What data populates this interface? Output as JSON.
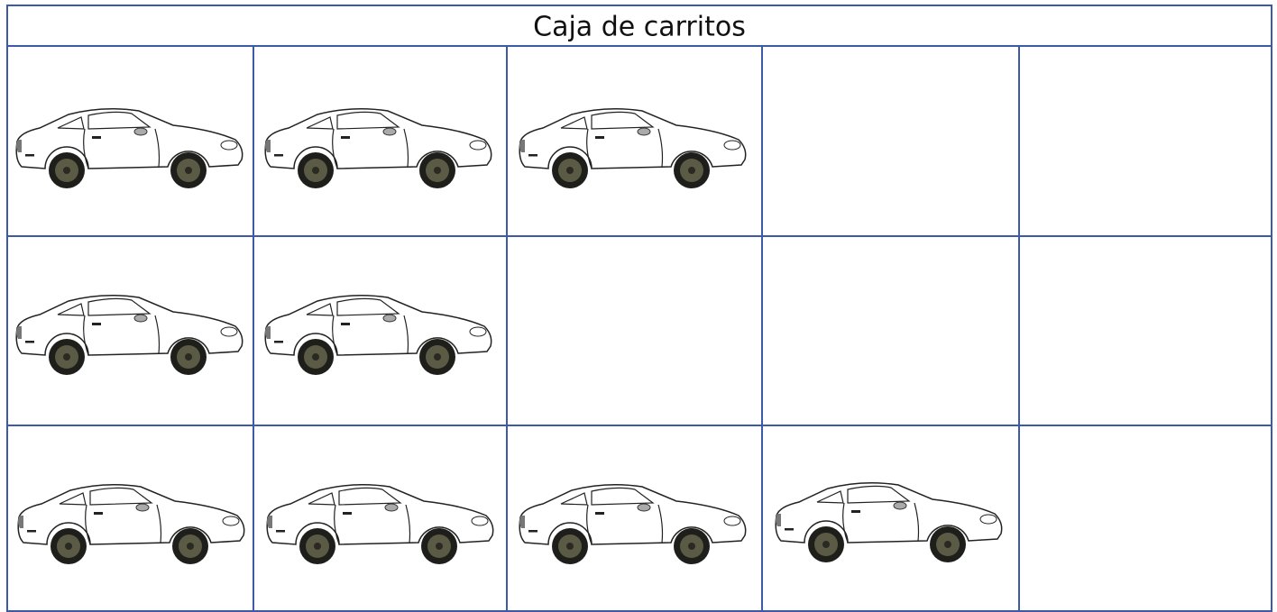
{
  "header": {
    "title": "Caja de carritos"
  }
}
